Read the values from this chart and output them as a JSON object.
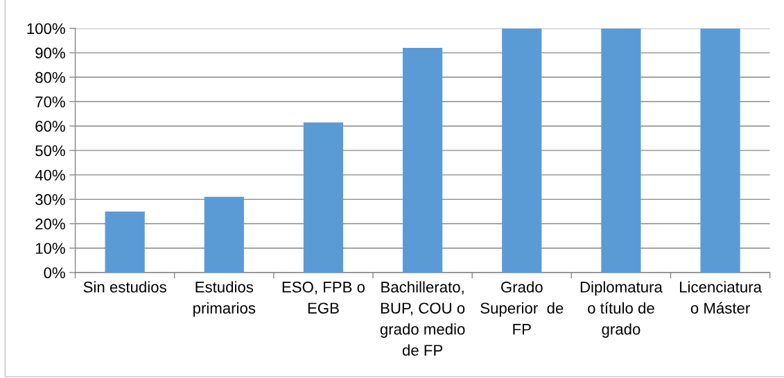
{
  "chart_data": {
    "type": "bar",
    "categories": [
      "Sin estudios",
      "Estudios\nprimarios",
      "ESO, FPB o\nEGB",
      "Bachillerato,\nBUP, COU o\ngrado medio\nde FP",
      "Grado\nSuperior  de\nFP",
      "Diplomatura\no título de\ngrado",
      "Licenciatura\no Máster"
    ],
    "values": [
      25,
      31,
      61.5,
      92,
      100,
      100,
      100
    ],
    "color": "#5b9bd5",
    "ylim": [
      0,
      100
    ],
    "yticks": [
      {
        "value": 0,
        "label": "0%"
      },
      {
        "value": 10,
        "label": "10%"
      },
      {
        "value": 20,
        "label": "20%"
      },
      {
        "value": 30,
        "label": "30%"
      },
      {
        "value": 40,
        "label": "40%"
      },
      {
        "value": 50,
        "label": "50%"
      },
      {
        "value": 60,
        "label": "60%"
      },
      {
        "value": 70,
        "label": "70%"
      },
      {
        "value": 80,
        "label": "80%"
      },
      {
        "value": 90,
        "label": "90%"
      },
      {
        "value": 100,
        "label": "100%"
      }
    ],
    "grid": "y"
  }
}
